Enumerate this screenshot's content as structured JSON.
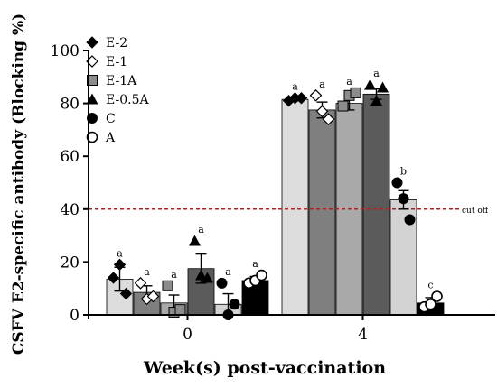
{
  "chart_data": {
    "type": "bar",
    "ylabel": "CSFV E2-specific antibody (Blocking %)",
    "xlabel": "Week(s) post-vaccination",
    "ylim": [
      0,
      100
    ],
    "yticks": [
      0,
      20,
      40,
      60,
      80,
      100
    ],
    "categories": [
      "0",
      "4"
    ],
    "series": [
      {
        "name": "E-2",
        "marker": "diamond",
        "bar_color": "#dcdcdc",
        "values": [
          13.5,
          81.5
        ],
        "errors": [
          4.5,
          0.5
        ],
        "points": [
          [
            14,
            19,
            8
          ],
          [
            81,
            82,
            82
          ]
        ],
        "letters": [
          "a",
          "a"
        ]
      },
      {
        "name": "E-1",
        "marker": "diamond-open",
        "bar_color": "#7f7f7f",
        "values": [
          8.5,
          77.5
        ],
        "errors": [
          2.5,
          3.0
        ],
        "points": [
          [
            12,
            6,
            7
          ],
          [
            83,
            77,
            74
          ]
        ],
        "letters": [
          "a",
          "a"
        ]
      },
      {
        "name": "E-1A",
        "marker": "square",
        "bar_color": "#a9a9a9",
        "values": [
          4.5,
          80.0
        ],
        "errors": [
          3.0,
          2.5
        ],
        "points": [
          [
            11,
            1,
            2
          ],
          [
            79,
            83,
            84
          ]
        ],
        "letters": [
          "a",
          "a"
        ]
      },
      {
        "name": "E-0.5A",
        "marker": "triangle",
        "bar_color": "#5b5b5b",
        "values": [
          17.5,
          83.5
        ],
        "errors": [
          5.5,
          2.0
        ],
        "points": [
          [
            28,
            15,
            14
          ],
          [
            87,
            81,
            86
          ]
        ],
        "letters": [
          "a",
          "a"
        ]
      },
      {
        "name": "C",
        "marker": "circle",
        "bar_color": "#d3d3d3",
        "values": [
          4.0,
          43.5
        ],
        "errors": [
          4.0,
          3.5
        ],
        "points": [
          [
            12,
            0,
            4
          ],
          [
            50,
            44,
            36
          ]
        ],
        "letters": [
          "a",
          "b"
        ]
      },
      {
        "name": "A",
        "marker": "circle-open",
        "bar_color": "#000000",
        "values": [
          13.0,
          4.5
        ],
        "errors": [
          1.5,
          2.0
        ],
        "points": [
          [
            12,
            13,
            15
          ],
          [
            3,
            4,
            7
          ]
        ],
        "letters": [
          "a",
          "c"
        ]
      }
    ],
    "reference_line": {
      "value": 40,
      "label": "cut off",
      "color": "#b22222",
      "style": "dashed"
    },
    "legend": "top-left",
    "grid": false
  }
}
